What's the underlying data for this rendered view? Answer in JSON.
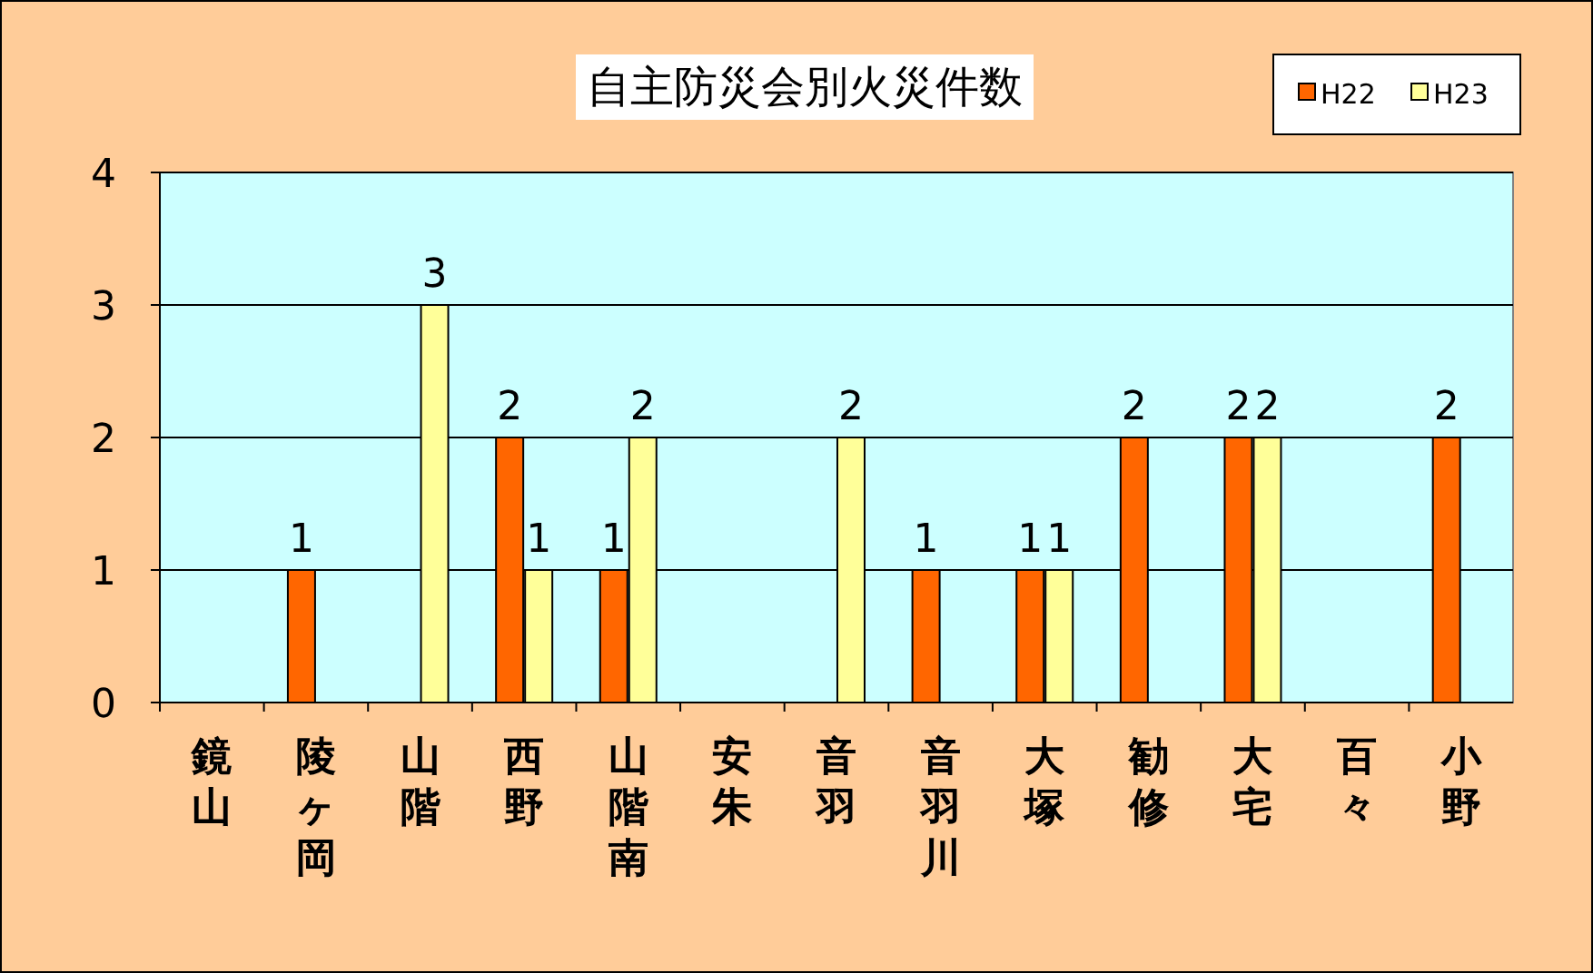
{
  "chart_data": {
    "type": "bar",
    "title": "自主防災会別火災件数",
    "categories": [
      "鏡山",
      "陵ヶ岡",
      "山階",
      "西野",
      "山階南",
      "安朱",
      "音羽",
      "音羽川",
      "大塚",
      "勧修",
      "大宅",
      "百々",
      "小野"
    ],
    "series": [
      {
        "name": "H22",
        "color": "#ff6600",
        "values": [
          0,
          1,
          0,
          2,
          1,
          0,
          0,
          1,
          1,
          2,
          2,
          0,
          2
        ],
        "value_labels": [
          null,
          "1",
          null,
          "2",
          "1",
          null,
          null,
          "1",
          "1",
          "2",
          "2",
          null,
          "2"
        ]
      },
      {
        "name": "H23",
        "color": "#ffff99",
        "values": [
          0,
          0,
          3,
          1,
          2,
          0,
          2,
          0,
          1,
          0,
          2,
          0,
          0
        ],
        "value_labels": [
          null,
          null,
          "3",
          "1",
          "2",
          null,
          "2",
          null,
          "1",
          null,
          "2",
          null,
          null
        ]
      }
    ],
    "ylim": [
      0,
      4
    ],
    "yticks": [
      0,
      1,
      2,
      3,
      4
    ],
    "grid": "y",
    "legend": "top right"
  }
}
